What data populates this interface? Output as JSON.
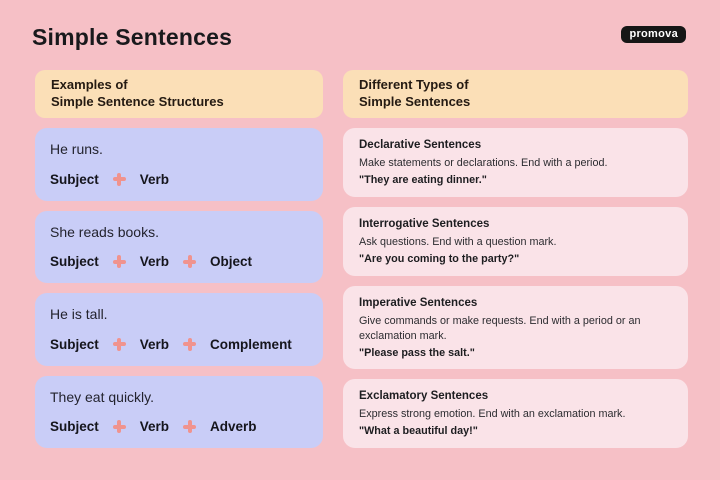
{
  "page": {
    "title": "Simple Sentences",
    "logo_text": "promova"
  },
  "left": {
    "header_line1": "Examples of",
    "header_line2": "Simple Sentence Structures",
    "cards": [
      {
        "sentence": "He runs.",
        "parts": [
          "Subject",
          "Verb"
        ]
      },
      {
        "sentence": "She reads books.",
        "parts": [
          "Subject",
          "Verb",
          "Object"
        ]
      },
      {
        "sentence": "He is tall.",
        "parts": [
          "Subject",
          "Verb",
          "Complement"
        ]
      },
      {
        "sentence": "They eat quickly.",
        "parts": [
          "Subject",
          "Verb",
          "Adverb"
        ]
      }
    ]
  },
  "right": {
    "header_line1": "Different Types of",
    "header_line2": "Simple Sentences",
    "cards": [
      {
        "heading": "Declarative Sentences",
        "description": "Make statements or declarations. End with a period.",
        "example": "\"They are eating dinner.\""
      },
      {
        "heading": "Interrogative Sentences",
        "description": "Ask questions. End with a question mark.",
        "example": "\"Are you coming to the party?\""
      },
      {
        "heading": "Imperative Sentences",
        "description": "Give commands or make requests. End with a period or an exclamation mark.",
        "example": "\"Please pass the salt.\""
      },
      {
        "heading": "Exclamatory Sentences",
        "description": "Express strong emotion. End with an exclamation mark.",
        "example": "\"What a beautiful day!\""
      }
    ]
  },
  "colors": {
    "background": "#F6C0C6",
    "header_card": "#FBDFB7",
    "example_card": "#C9CDF7",
    "type_card": "#FAE3E8",
    "plus_accent": "#F0938E",
    "text_dark": "#19191c",
    "logo_bg": "#161616",
    "logo_text": "#ffffff"
  }
}
